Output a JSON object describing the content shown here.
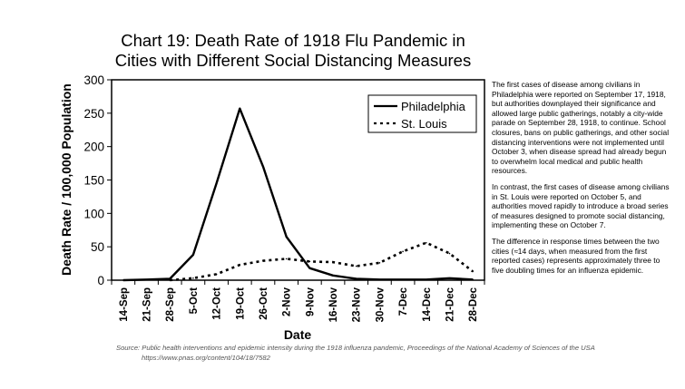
{
  "chart_data": {
    "type": "line",
    "title": [
      "Chart 19: Death Rate of 1918 Flu Pandemic in",
      "Cities with Different Social Distancing Measures"
    ],
    "xlabel": "Date",
    "ylabel": "Death Rate / 100,000 Population",
    "ylim": [
      0,
      300
    ],
    "yticks": [
      0,
      50,
      100,
      150,
      200,
      250,
      300
    ],
    "categories": [
      "14-Sep",
      "21-Sep",
      "28-Sep",
      "5-Oct",
      "12-Oct",
      "19-Oct",
      "26-Oct",
      "2-Nov",
      "9-Nov",
      "16-Nov",
      "23-Nov",
      "30-Nov",
      "7-Dec",
      "14-Dec",
      "21-Dec",
      "28-Dec"
    ],
    "grid": false,
    "legend_position": "top-right",
    "series": [
      {
        "name": "Philadelphia",
        "style": "solid",
        "color": "#000000",
        "x": [
          0,
          1,
          2,
          3,
          4,
          5,
          6,
          7,
          8,
          9,
          10,
          11,
          12,
          13,
          14,
          15
        ],
        "values": [
          0,
          1,
          2,
          38,
          145,
          257,
          170,
          65,
          18,
          7,
          2,
          1,
          1,
          1,
          3,
          1
        ]
      },
      {
        "name": "St. Louis",
        "style": "dotted",
        "color": "#000000",
        "x": [
          2,
          3,
          4,
          5,
          6,
          7,
          8,
          9,
          10,
          11,
          12,
          13,
          14,
          15
        ],
        "values": [
          0,
          3,
          9,
          23,
          29,
          32,
          28,
          27,
          21,
          26,
          43,
          56,
          40,
          13
        ]
      }
    ]
  },
  "side_note": [
    "The first cases of disease among civilians in Philadelphia were reported on September 17, 1918, but authorities downplayed their significance and allowed large public gatherings, notably a city-wide parade on September 28, 1918, to continue. School closures, bans on public gatherings, and other social distancing interventions were not implemented until October 3, when disease spread had already begun to overwhelm local medical and public health resources.",
    "In contrast, the first cases of disease among civilians in St. Louis were reported on October 5, and authorities moved rapidly to introduce a broad series of measures designed to promote social distancing, implementing these on October 7.",
    "The difference in response times between the two cities (≈14 days, when measured from the first reported cases) represents approximately three to five doubling times for an influenza epidemic."
  ],
  "source": [
    "Source: Public health interventions and epidemic intensity during the 1918 influenza pandemic, Proceedings of the National Academy of Sciences of the USA",
    "https://www.pnas.org/content/104/18/7582"
  ]
}
